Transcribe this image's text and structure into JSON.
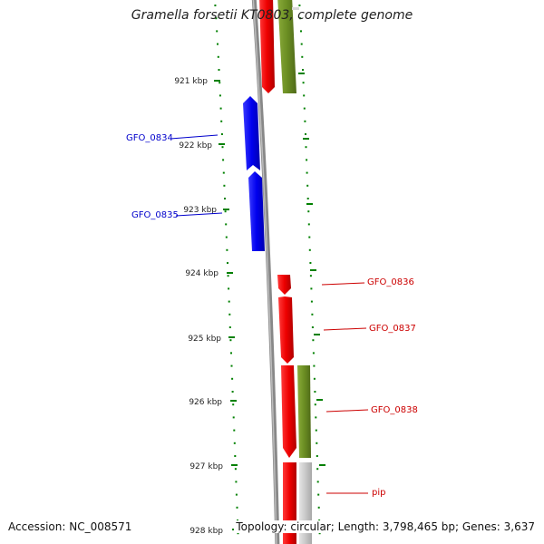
{
  "title": "Gramella forsetii KT0803, complete genome",
  "accession": "Accession: NC_008571",
  "summary": "Topology: circular; Length: 3,798,465 bp; Genes: 3,637",
  "ticks": [
    "921 kbp",
    "922 kbp",
    "923 kbp",
    "924 kbp",
    "925 kbp",
    "926 kbp",
    "927 kbp",
    "928 kbp"
  ],
  "gene_labels": [
    {
      "text": "GFO_0834",
      "color": "#0000cc"
    },
    {
      "text": "GFO_0835",
      "color": "#0000cc"
    },
    {
      "text": "GFO_0836",
      "color": "#cc0000"
    },
    {
      "text": "GFO_0837",
      "color": "#cc0000"
    },
    {
      "text": "GFO_0838",
      "color": "#cc0000"
    },
    {
      "text": "pip",
      "color": "#cc0000"
    }
  ],
  "colors": {
    "forward_cds": "#ff0000",
    "reverse_cds": "#0000ff",
    "cog_track": "#6b8e23",
    "grey_track": "#c8c8c8",
    "backbone": "#888888",
    "tick_color": "#008000",
    "label_blue": "#0000cc",
    "label_red": "#cc0000"
  }
}
